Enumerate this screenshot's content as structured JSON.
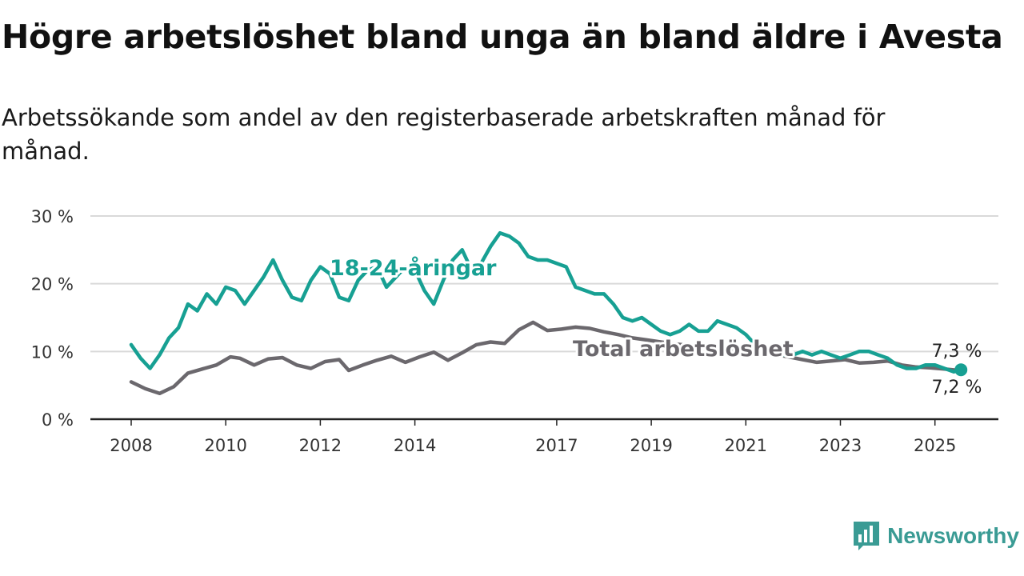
{
  "title": "Högre arbetslöshet bland unga än bland äldre i Avesta",
  "subtitle": "Arbetssökande som andel av den registerbaserade arbetskraften månad för månad.",
  "brand": {
    "name": "Newsworthy",
    "color": "#3a9b94",
    "icon": "bar-chart-icon"
  },
  "chart_data": {
    "type": "line",
    "title": "Högre arbetslöshet bland unga än bland äldre i Avesta",
    "xlabel": "",
    "ylabel": "",
    "ylim": [
      0,
      30
    ],
    "xlim": [
      2007.9,
      2026.4
    ],
    "grid": true,
    "y_ticks": [
      0,
      10,
      20,
      30
    ],
    "y_tick_labels": [
      "0 %",
      "10 %",
      "20 %",
      "30 %"
    ],
    "x_ticks": [
      2008,
      2010,
      2012,
      2014,
      2017,
      2019,
      2021,
      2023,
      2025
    ],
    "x_tick_labels": [
      "2008",
      "2010",
      "2012",
      "2014",
      "2017",
      "2019",
      "2021",
      "2023",
      "2025"
    ],
    "series": [
      {
        "name": "Total arbetslöshet",
        "color": "#6b686d",
        "label_value": "7,2 %",
        "x": [
          2008.0,
          2008.3,
          2008.6,
          2008.9,
          2009.2,
          2009.5,
          2009.8,
          2010.1,
          2010.3,
          2010.6,
          2010.9,
          2011.2,
          2011.5,
          2011.8,
          2012.1,
          2012.4,
          2012.6,
          2012.9,
          2013.2,
          2013.5,
          2013.8,
          2014.1,
          2014.4,
          2014.7,
          2015.0,
          2015.3,
          2015.6,
          2015.9,
          2016.2,
          2016.5,
          2016.8,
          2017.1,
          2017.4,
          2017.7,
          2018.0,
          2018.3,
          2018.6,
          2018.9,
          2019.2,
          2019.5,
          2019.8,
          2020.1,
          2020.4,
          2020.7,
          2021.0,
          2021.3,
          2021.6,
          2021.9,
          2022.2,
          2022.5,
          2022.8,
          2023.1,
          2023.4,
          2023.7,
          2024.0,
          2024.3,
          2024.6,
          2024.9,
          2025.2,
          2025.5
        ],
        "y": [
          5.5,
          4.5,
          3.8,
          4.8,
          6.8,
          7.4,
          8.0,
          9.2,
          9.0,
          8.0,
          8.9,
          9.1,
          8.0,
          7.5,
          8.5,
          8.8,
          7.2,
          8.0,
          8.7,
          9.3,
          8.4,
          9.2,
          9.9,
          8.7,
          9.8,
          11.0,
          11.4,
          11.2,
          13.2,
          14.3,
          13.1,
          13.3,
          13.6,
          13.4,
          12.9,
          12.5,
          12.0,
          11.7,
          11.4,
          11.1,
          10.9,
          10.8,
          10.6,
          10.4,
          10.2,
          9.9,
          9.6,
          9.2,
          8.8,
          8.4,
          8.6,
          8.8,
          8.3,
          8.4,
          8.6,
          8.0,
          7.7,
          7.6,
          7.4,
          7.2
        ]
      },
      {
        "name": "18-24-åringar",
        "color": "#17a093",
        "label_value": "7,3 %",
        "x": [
          2008.0,
          2008.2,
          2008.4,
          2008.6,
          2008.8,
          2009.0,
          2009.2,
          2009.4,
          2009.6,
          2009.8,
          2010.0,
          2010.2,
          2010.4,
          2010.6,
          2010.8,
          2011.0,
          2011.2,
          2011.4,
          2011.6,
          2011.8,
          2012.0,
          2012.2,
          2012.4,
          2012.6,
          2012.8,
          2013.0,
          2013.2,
          2013.4,
          2013.6,
          2013.8,
          2014.0,
          2014.2,
          2014.4,
          2014.6,
          2014.8,
          2015.0,
          2015.2,
          2015.4,
          2015.6,
          2015.8,
          2016.0,
          2016.2,
          2016.4,
          2016.6,
          2016.8,
          2017.0,
          2017.2,
          2017.4,
          2017.6,
          2017.8,
          2018.0,
          2018.2,
          2018.4,
          2018.6,
          2018.8,
          2019.0,
          2019.2,
          2019.4,
          2019.6,
          2019.8,
          2020.0,
          2020.2,
          2020.4,
          2020.6,
          2020.8,
          2021.0,
          2021.2,
          2021.4,
          2021.6,
          2021.8,
          2022.0,
          2022.2,
          2022.4,
          2022.6,
          2022.8,
          2023.0,
          2023.2,
          2023.4,
          2023.6,
          2023.8,
          2024.0,
          2024.2,
          2024.4,
          2024.6,
          2024.8,
          2025.0,
          2025.2,
          2025.4,
          2025.55
        ],
        "y": [
          11.0,
          9.0,
          7.5,
          9.5,
          12.0,
          13.5,
          17.0,
          16.0,
          18.5,
          17.0,
          19.5,
          19.0,
          17.0,
          19.0,
          21.0,
          23.5,
          20.5,
          18.0,
          17.5,
          20.5,
          22.5,
          21.5,
          18.0,
          17.5,
          20.5,
          22.0,
          22.5,
          19.5,
          21.0,
          22.5,
          22.0,
          19.0,
          17.0,
          20.5,
          23.5,
          25.0,
          22.0,
          23.0,
          25.5,
          27.5,
          27.0,
          26.0,
          24.0,
          23.5,
          23.5,
          23.0,
          22.5,
          19.5,
          19.0,
          18.5,
          18.5,
          17.0,
          15.0,
          14.5,
          15.0,
          14.0,
          13.0,
          12.5,
          13.0,
          14.0,
          13.0,
          13.0,
          14.5,
          14.0,
          13.5,
          12.5,
          11.0,
          10.5,
          10.0,
          9.5,
          9.5,
          10.0,
          9.5,
          10.0,
          9.5,
          9.0,
          9.5,
          10.0,
          10.0,
          9.5,
          9.0,
          8.0,
          7.5,
          7.5,
          8.0,
          8.0,
          7.5,
          7.0,
          7.3
        ]
      }
    ]
  }
}
